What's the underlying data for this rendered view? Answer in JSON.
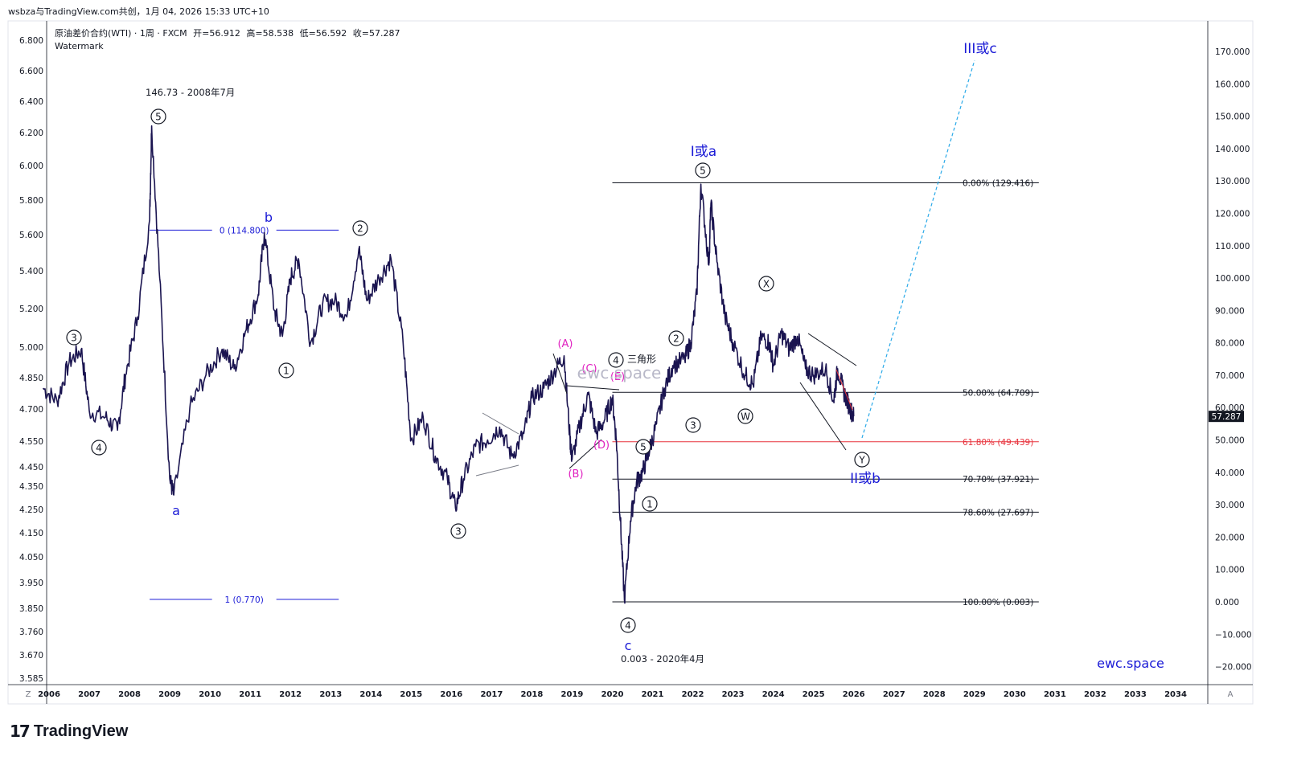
{
  "header": {
    "snapshot_text": "wsbza与TradingView.com共创，1月 04, 2026 15:33 UTC+10"
  },
  "legend": {
    "symbol_line": "原油差价合约(WTI) · 1周 · FXCM",
    "open_label": "开=",
    "open_value": "56.912",
    "high_label": "高=",
    "high_value": "58.538",
    "low_label": "低=",
    "low_value": "56.592",
    "close_label": "收=",
    "close_value": "57.287",
    "watermark_label": "Watermark"
  },
  "footer": {
    "brand_mark": "17",
    "brand_name": "TradingView"
  },
  "colors": {
    "price": "#1a1450",
    "blue_label": "#1a1ad6",
    "magenta": "#e020c0",
    "fib_red": "#e8323c",
    "fib_black": "#131722",
    "projection": "#29a9e8",
    "price_tag_bg": "#131722"
  },
  "chart_data": {
    "type": "line",
    "symbol": "原油差价合约(WTI)",
    "interval": "1周",
    "x_axis": {
      "labels": [
        "2006",
        "2007",
        "2008",
        "2009",
        "2010",
        "2011",
        "2012",
        "2013",
        "2014",
        "2015",
        "2016",
        "2017",
        "2018",
        "2019",
        "2020",
        "2021",
        "2022",
        "2023",
        "2024",
        "2025",
        "2026",
        "2027",
        "2028",
        "2029",
        "2030",
        "2031",
        "2032",
        "2033",
        "2034"
      ],
      "corner_left": "Z",
      "corner_right": "A",
      "xlim": [
        2005.8,
        2035.8
      ]
    },
    "y_left": {
      "scale": "log",
      "labels": [
        "6.800",
        "6.600",
        "6.400",
        "6.200",
        "6.000",
        "5.800",
        "5.600",
        "5.400",
        "5.200",
        "5.000",
        "4.850",
        "4.700",
        "4.550",
        "4.450",
        "4.350",
        "4.250",
        "4.150",
        "4.050",
        "3.950",
        "3.850",
        "3.760",
        "3.670",
        "3.585"
      ]
    },
    "y_right": {
      "labels": [
        "170.000",
        "160.000",
        "150.000",
        "140.000",
        "130.000",
        "120.000",
        "110.000",
        "100.000",
        "90.000",
        "80.000",
        "70.000",
        "60.000",
        "50.000",
        "40.000",
        "30.000",
        "20.000",
        "10.000",
        "0.000",
        "−10.000",
        "−20.000"
      ],
      "values": [
        170,
        160,
        150,
        140,
        130,
        120,
        110,
        100,
        90,
        80,
        70,
        60,
        50,
        40,
        30,
        20,
        10,
        0,
        -10,
        -20
      ],
      "ylim": [
        -24,
        178
      ]
    },
    "last_price": "57.287",
    "price_series": [
      [
        2005.85,
        66
      ],
      [
        2006.2,
        62
      ],
      [
        2006.5,
        74
      ],
      [
        2006.8,
        78
      ],
      [
        2007.0,
        59
      ],
      [
        2007.4,
        57
      ],
      [
        2007.7,
        53
      ],
      [
        2007.9,
        70
      ],
      [
        2008.2,
        88
      ],
      [
        2008.5,
        118
      ],
      [
        2008.55,
        147
      ],
      [
        2008.75,
        100
      ],
      [
        2009.0,
        38
      ],
      [
        2009.1,
        33
      ],
      [
        2009.5,
        60
      ],
      [
        2009.9,
        70
      ],
      [
        2010.3,
        78
      ],
      [
        2010.6,
        72
      ],
      [
        2010.9,
        84
      ],
      [
        2011.2,
        95
      ],
      [
        2011.35,
        114
      ],
      [
        2011.6,
        90
      ],
      [
        2011.8,
        82
      ],
      [
        2012.0,
        100
      ],
      [
        2012.2,
        106
      ],
      [
        2012.5,
        80
      ],
      [
        2012.8,
        92
      ],
      [
        2013.1,
        93
      ],
      [
        2013.4,
        88
      ],
      [
        2013.7,
        109
      ],
      [
        2013.9,
        93
      ],
      [
        2014.2,
        100
      ],
      [
        2014.5,
        106
      ],
      [
        2014.8,
        80
      ],
      [
        2015.0,
        50
      ],
      [
        2015.3,
        57
      ],
      [
        2015.6,
        45
      ],
      [
        2015.9,
        38
      ],
      [
        2016.1,
        29
      ],
      [
        2016.3,
        38
      ],
      [
        2016.6,
        48
      ],
      [
        2016.9,
        50
      ],
      [
        2017.2,
        54
      ],
      [
        2017.5,
        45
      ],
      [
        2017.8,
        52
      ],
      [
        2018.0,
        63
      ],
      [
        2018.3,
        66
      ],
      [
        2018.55,
        71
      ],
      [
        2018.8,
        76
      ],
      [
        2018.95,
        50
      ],
      [
        2019.0,
        44
      ],
      [
        2019.2,
        55
      ],
      [
        2019.4,
        64
      ],
      [
        2019.6,
        52
      ],
      [
        2019.8,
        56
      ],
      [
        2020.0,
        63
      ],
      [
        2020.1,
        50
      ],
      [
        2020.2,
        25
      ],
      [
        2020.3,
        0.5
      ],
      [
        2020.45,
        25
      ],
      [
        2020.6,
        37
      ],
      [
        2020.75,
        40
      ],
      [
        2020.9,
        46
      ],
      [
        2021.1,
        55
      ],
      [
        2021.3,
        66
      ],
      [
        2021.5,
        73
      ],
      [
        2021.8,
        75
      ],
      [
        2021.95,
        80
      ],
      [
        2022.1,
        95
      ],
      [
        2022.2,
        129
      ],
      [
        2022.4,
        104
      ],
      [
        2022.45,
        123
      ],
      [
        2022.6,
        105
      ],
      [
        2022.8,
        88
      ],
      [
        2023.0,
        80
      ],
      [
        2023.3,
        70
      ],
      [
        2023.5,
        67
      ],
      [
        2023.7,
        82
      ],
      [
        2023.9,
        80
      ],
      [
        2024.0,
        73
      ],
      [
        2024.2,
        83
      ],
      [
        2024.4,
        78
      ],
      [
        2024.6,
        82
      ],
      [
        2024.8,
        72
      ],
      [
        2025.0,
        70
      ],
      [
        2025.3,
        72
      ],
      [
        2025.5,
        62
      ],
      [
        2025.6,
        72
      ],
      [
        2025.75,
        65
      ],
      [
        2025.9,
        60
      ],
      [
        2026.0,
        57.3
      ]
    ],
    "fibonacci_right": [
      {
        "label": "0.00% (129.416)",
        "value": 129.416,
        "color": "#131722"
      },
      {
        "label": "50.00% (64.709)",
        "value": 64.709,
        "color": "#131722"
      },
      {
        "label": "61.80% (49.439)",
        "value": 49.439,
        "color": "#e8323c"
      },
      {
        "label": "70.70% (37.921)",
        "value": 37.921,
        "color": "#131722"
      },
      {
        "label": "78.60% (27.697)",
        "value": 27.697,
        "color": "#131722"
      },
      {
        "label": "100.00% (0.003)",
        "value": 0.003,
        "color": "#131722"
      }
    ],
    "fibonacci_left": [
      {
        "label": "0 (114.800)",
        "value": 114.8
      },
      {
        "label": "1 (0.770)",
        "value": 0.77
      }
    ],
    "annotations": {
      "peak_note": "146.73 - 2008年7月",
      "trough_note": "0.003 - 2020年4月",
      "triangle_note": "三角形",
      "wave_Ia": "I或a",
      "wave_IIb": "II或b",
      "wave_IIIc": "III或c",
      "letter_a": "a",
      "letter_b": "b",
      "letter_c": "c",
      "brand": "ewc.space",
      "faint_watermark": "ewc.space",
      "circled": [
        "5",
        "3",
        "4",
        "1",
        "2",
        "3",
        "4",
        "5",
        "1",
        "2",
        "3",
        "4",
        "5",
        "W",
        "X",
        "Y"
      ],
      "triangle_legs": [
        "(A)",
        "(B)",
        "(C)",
        "(D)",
        "(E)"
      ]
    }
  }
}
